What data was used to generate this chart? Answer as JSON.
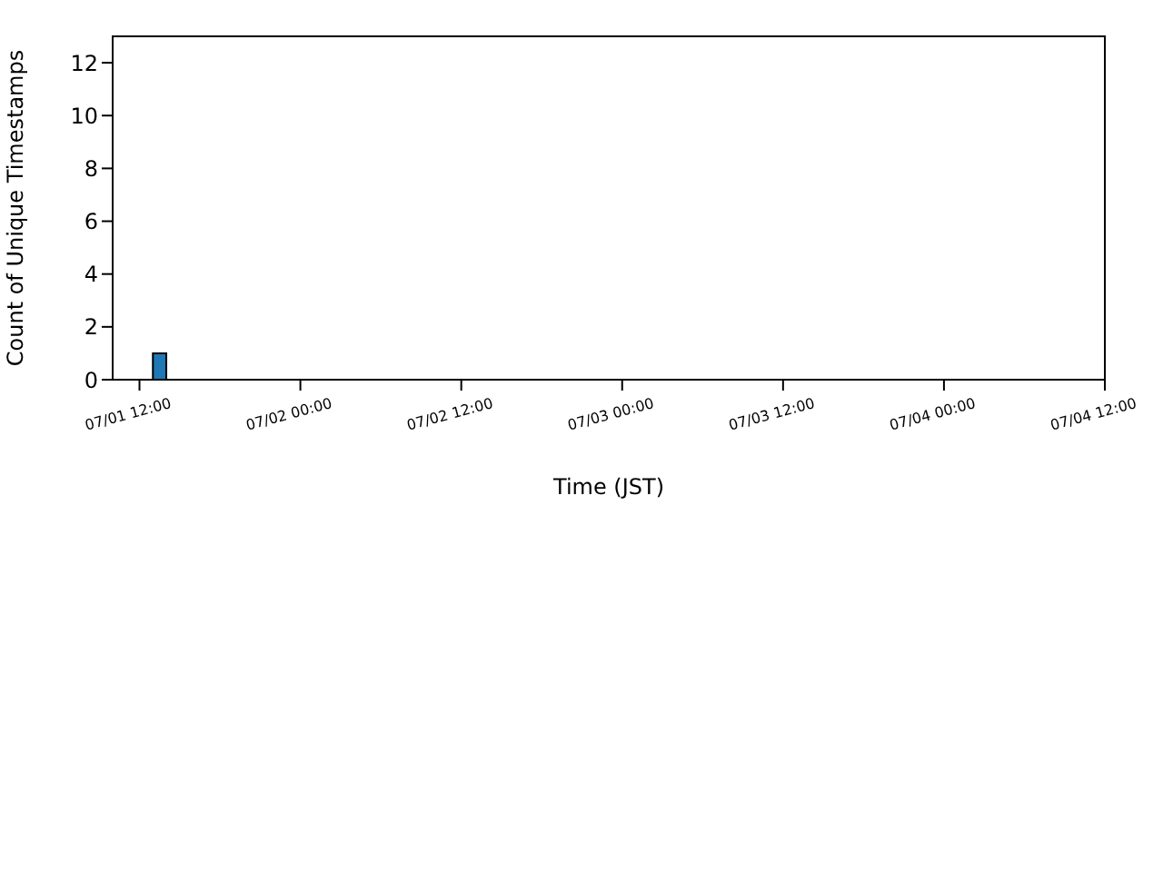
{
  "chart_data": {
    "type": "histogram",
    "xlabel": "Time (JST)",
    "ylabel": "Count of Unique Timestamps",
    "bins": [
      "--07-01T11:00",
      "--07-01T12:00",
      "--07-01T13:00",
      "--07-01T14:00",
      "--07-01T15:00",
      "--07-01T16:00",
      "--07-01T17:00",
      "--07-01T18:00",
      "--07-01T19:00",
      "--07-01T20:00",
      "--07-01T21:00",
      "--07-01T22:00",
      "--07-01T23:00",
      "--07-02T00:00",
      "--07-02T01:00",
      "--07-02T02:00",
      "--07-02T03:00",
      "--07-02T04:00",
      "--07-02T05:00",
      "--07-02T06:00",
      "--07-02T07:00",
      "--07-02T08:00",
      "--07-02T09:00",
      "--07-02T10:00",
      "--07-02T11:00",
      "--07-02T12:00",
      "--07-02T13:00",
      "--07-02T14:00",
      "--07-02T15:00",
      "--07-02T16:00",
      "--07-02T17:00",
      "--07-02T18:00",
      "--07-02T19:00",
      "--07-02T20:00",
      "--07-02T21:00",
      "--07-02T22:00",
      "--07-02T23:00",
      "--07-03T00:00",
      "--07-03T01:00",
      "--07-03T02:00",
      "--07-03T03:00",
      "--07-03T04:00",
      "--07-03T05:00",
      "--07-03T06:00",
      "--07-03T07:00",
      "--07-03T08:00",
      "--07-03T09:00",
      "--07-03T10:00",
      "--07-03T11:00",
      "--07-03T12:00",
      "--07-03T13:00",
      "--07-03T14:00",
      "--07-03T15:00",
      "--07-03T16:00",
      "--07-03T17:00",
      "--07-03T18:00",
      "--07-03T19:00",
      "--07-03T20:00",
      "--07-03T21:00",
      "--07-03T22:00",
      "--07-03T23:00",
      "--07-04T00:00",
      "--07-04T01:00",
      "--07-04T02:00",
      "--07-04T03:00",
      "--07-04T04:00",
      "--07-04T05:00",
      "--07-04T06:00",
      "--07-04T07:00",
      "--07-04T08:00",
      "--07-04T09:00",
      "--07-04T10:00"
    ],
    "values": [
      0,
      0,
      1,
      0,
      0,
      0,
      0,
      0,
      0,
      0,
      0,
      0,
      0,
      0,
      0,
      0,
      0,
      0,
      0,
      0,
      0,
      0,
      0,
      0,
      0,
      0,
      0,
      0,
      0,
      0,
      0,
      0,
      0,
      0,
      0,
      0,
      0,
      0,
      0,
      0,
      0,
      0,
      0,
      0,
      0,
      0,
      0,
      0,
      0,
      0,
      0,
      0,
      0,
      0,
      0,
      0,
      0,
      0,
      0,
      0,
      0,
      0,
      0,
      0,
      0,
      0,
      0,
      0,
      0,
      0,
      0
    ],
    "color": "#1f77b4",
    "xlim": [
      "--07-01T10:00",
      "--07-04T12:00"
    ],
    "xticks": [
      {
        "value": "--07-01T12:00",
        "label": "07/01 12:00"
      },
      {
        "value": "--07-02T00:00",
        "label": "07/02 00:00"
      },
      {
        "value": "--07-02T12:00",
        "label": "07/02 12:00"
      },
      {
        "value": "--07-03T00:00",
        "label": "07/03 00:00"
      },
      {
        "value": "--07-03T12:00",
        "label": "07/03 12:00"
      },
      {
        "value": "--07-04T00:00",
        "label": "07/04 00:00"
      },
      {
        "value": "--07-04T12:00",
        "label": "07/04 12:00"
      }
    ],
    "ylim": [
      0,
      13
    ],
    "yticks": [
      0,
      2,
      4,
      6,
      8,
      10,
      12
    ],
    "grid": false
  }
}
